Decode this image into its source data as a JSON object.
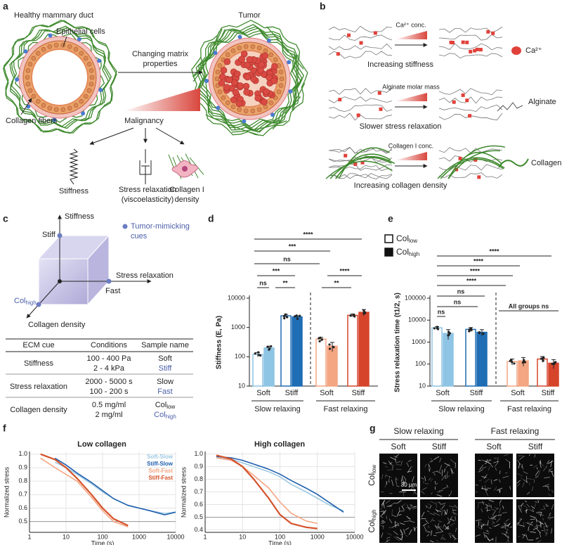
{
  "panel_a": {
    "letter": "a",
    "title_left": "Healthy mammary duct",
    "epithelial": "Epithelial cells",
    "tumor": "Tumor",
    "arrow_label": [
      "Changing matrix",
      "properties"
    ],
    "collagen": "Collagen fibers",
    "malignancy": "Malignancy",
    "stiffness": "Stiffness",
    "stress": [
      "Stress relaxation",
      "(viscoelasticity)"
    ],
    "collagen_density": [
      "Collagen I",
      "density"
    ]
  },
  "panel_b": {
    "letter": "b",
    "rows": [
      {
        "condition": "Ca²⁺ conc.",
        "result": "Increasing stiffness",
        "legend": "Ca²⁺"
      },
      {
        "condition": "Alginate molar mass",
        "result": "Slower stress relaxation",
        "legend": "Alginate"
      },
      {
        "condition": "Collagen I conc.",
        "result": "Increasing collagen density",
        "legend": "Collagen I"
      }
    ]
  },
  "panel_c": {
    "letter": "c",
    "axes": {
      "stiffness": "Stiffness",
      "stress": "Stress relaxation",
      "collagen": "Collagen density"
    },
    "cue_labels": {
      "stiff": "Stiff",
      "fast": "Fast",
      "col": {
        "text": "Col",
        "sub": "high"
      }
    },
    "legend": [
      "Tumor-mimicking",
      "cues"
    ],
    "table": {
      "header": [
        "ECM cue",
        "Conditions",
        "Sample name"
      ],
      "rows": [
        {
          "cue": "Stiffness",
          "conditions": [
            "100 - 400 Pa",
            "2 - 4 kPa"
          ],
          "names": [
            {
              "text": "Soft"
            },
            {
              "text": "Stiff",
              "tumor": true
            }
          ]
        },
        {
          "cue": "Stress relaxation",
          "conditions": [
            "2000 - 5000 s",
            "100 - 200 s"
          ],
          "names": [
            {
              "text": "Slow"
            },
            {
              "text": "Fast",
              "tumor": true
            }
          ]
        },
        {
          "cue": "Collagen density",
          "conditions": [
            "0.5 mg/ml",
            "2 mg/ml"
          ],
          "names": [
            {
              "text": "Col",
              "sub": "low"
            },
            {
              "text": "Col",
              "sub": "high",
              "tumor": true
            }
          ]
        }
      ]
    }
  },
  "chart_data": [
    {
      "type": "bar",
      "letter": "d",
      "y_label": "Stiffness (E, Pa)",
      "log_y": true,
      "ylim": [
        10,
        10000
      ],
      "yticks": [
        10,
        100,
        1000,
        10000
      ],
      "categories": [
        "Soft",
        "Stiff",
        "Soft",
        "Stiff"
      ],
      "groups": [
        "Slow relaxing",
        "Fast relaxing"
      ],
      "category_colors": [
        "#8ec4e4",
        "#1f6db4",
        "#f4a582",
        "#d6452b"
      ],
      "series": [
        {
          "name": "Col",
          "subscript": "low",
          "filled": false,
          "values": [
            120,
            2500,
            400,
            2600
          ],
          "errors": [
            20,
            300,
            60,
            300
          ]
        },
        {
          "name": "Col",
          "subscript": "high",
          "filled": true,
          "values": [
            200,
            2300,
            230,
            3300
          ],
          "errors": [
            30,
            200,
            80,
            800
          ]
        }
      ],
      "annotations": [
        "****",
        "***",
        "ns",
        "***",
        "ns",
        "**",
        "****",
        "**"
      ]
    },
    {
      "type": "bar",
      "letter": "e",
      "y_label": "Stress relaxation time (t1/2, s)",
      "log_y": true,
      "ylim": [
        10,
        100000
      ],
      "yticks": [
        10,
        100,
        1000,
        10000,
        100000
      ],
      "categories": [
        "Soft",
        "Stiff",
        "Soft",
        "Stiff"
      ],
      "groups": [
        "Slow relaxing",
        "Fast relaxing"
      ],
      "category_colors": [
        "#8ec4e4",
        "#1f6db4",
        "#f4a582",
        "#d6452b"
      ],
      "series": [
        {
          "name": "Col",
          "subscript": "low",
          "filled": false,
          "values": [
            4500,
            3800,
            130,
            170
          ],
          "errors": [
            500,
            800,
            40,
            50
          ]
        },
        {
          "name": "Col",
          "subscript": "high",
          "filled": true,
          "values": [
            2500,
            2800,
            140,
            110
          ],
          "errors": [
            1200,
            900,
            60,
            50
          ]
        }
      ],
      "annotations": [
        "****",
        "****",
        "****",
        "****",
        "ns",
        "ns",
        "ns",
        "All groups ns"
      ]
    },
    {
      "type": "line",
      "letter": "f",
      "title": "Low collagen",
      "x_label": "Time (s)",
      "y_label": "Normalized stress",
      "log_x": true,
      "grid": true,
      "reference_line": 0.5,
      "xlim": [
        1,
        10000
      ],
      "xticks": [
        1,
        10,
        100,
        1000,
        10000
      ],
      "ylim": [
        0.42,
        1.02
      ],
      "yticks": [
        0.5,
        0.6,
        0.7,
        0.8,
        0.9,
        {
          "value": 1,
          "label": "1.0"
        }
      ],
      "legend": "top-right",
      "x": [
        2,
        5,
        10,
        20,
        50,
        100,
        200,
        500,
        1000,
        2000,
        5000,
        10000
      ],
      "series": [
        {
          "name": "Soft-Slow",
          "color": "#9ec9e2",
          "values": [
            null,
            0.94,
            0.9,
            0.85,
            0.78,
            0.72,
            0.67,
            0.62,
            0.6,
            0.58,
            0.56,
            0.57
          ]
        },
        {
          "name": "Stiff-Slow",
          "color": "#1f5fae",
          "values": [
            null,
            0.97,
            0.92,
            0.86,
            0.79,
            0.73,
            0.67,
            0.62,
            0.6,
            0.58,
            0.55,
            0.57
          ]
        },
        {
          "name": "Soft-Fast",
          "color": "#f4a582",
          "values": [
            0.97,
            0.9,
            0.85,
            0.8,
            0.68,
            0.58,
            0.5,
            0.46,
            null,
            null,
            null,
            null
          ]
        },
        {
          "name": "Stiff-Fast",
          "color": "#d4522a",
          "values": [
            1,
            0.96,
            0.9,
            0.82,
            0.7,
            0.6,
            0.52,
            0.47,
            null,
            null,
            null,
            null
          ]
        }
      ]
    },
    {
      "type": "line",
      "title": "High collagen",
      "x_label": "Time (s)",
      "y_label": "Normalized stress",
      "log_x": true,
      "grid": true,
      "reference_line": 0.5,
      "xlim": [
        1,
        10000
      ],
      "xticks": [
        1,
        10,
        100,
        1000,
        10000
      ],
      "ylim": [
        0.38,
        1.02
      ],
      "yticks": [
        0.4,
        0.5,
        0.6,
        0.7,
        0.8,
        0.9,
        {
          "value": 1,
          "label": "1.0"
        }
      ],
      "x": [
        2,
        5,
        10,
        20,
        50,
        100,
        200,
        500,
        1000,
        2000,
        5000,
        10000
      ],
      "series": [
        {
          "color": "#9ec9e2",
          "values": [
            0.97,
            0.96,
            0.93,
            0.9,
            0.86,
            0.82,
            0.76,
            0.7,
            0.65,
            0.6,
            0.55,
            null
          ]
        },
        {
          "color": "#1f5fae",
          "values": [
            0.98,
            0.97,
            0.95,
            0.92,
            0.88,
            0.84,
            0.79,
            0.73,
            0.68,
            0.62,
            0.54,
            null
          ]
        },
        {
          "color": "#f4a582",
          "values": [
            0.97,
            0.95,
            0.9,
            0.83,
            0.73,
            0.62,
            0.53,
            0.47,
            0.45,
            null,
            null,
            null
          ]
        },
        {
          "color": "#d4522a",
          "values": [
            0.99,
            0.96,
            0.9,
            0.8,
            0.65,
            0.52,
            0.45,
            0.42,
            0.41,
            null,
            null,
            null
          ]
        }
      ]
    }
  ],
  "panel_g": {
    "letter": "g",
    "groups": [
      "Slow relaxing",
      "Fast relaxing"
    ],
    "columns": [
      "Soft",
      "Stiff",
      "Soft",
      "Stiff"
    ],
    "rows": [
      {
        "text": "Col",
        "sub": "low"
      },
      {
        "text": "Col",
        "sub": "high"
      }
    ],
    "scale_bar": "30 µm"
  }
}
